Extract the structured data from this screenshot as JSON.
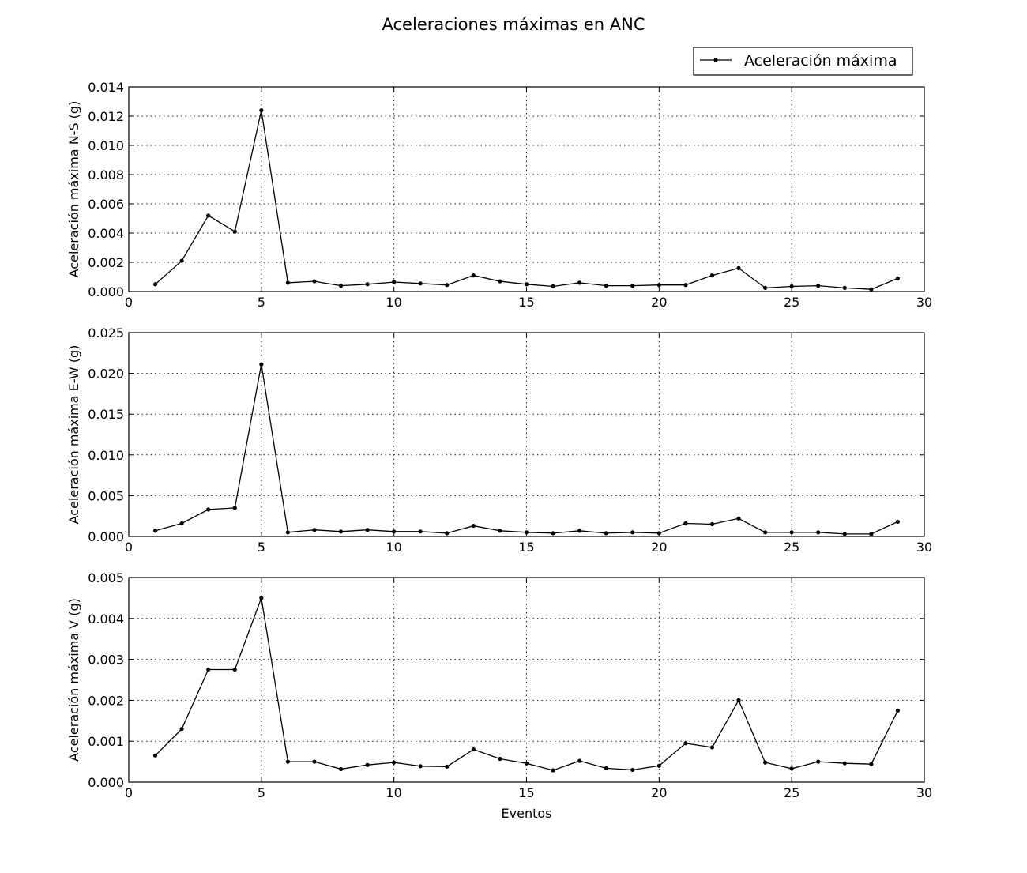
{
  "title": "Aceleraciones máximas en ANC",
  "legend": {
    "label": "Aceleración máxima",
    "placement": "top-right"
  },
  "colors": {
    "line": "#000000",
    "background": "#ffffff"
  },
  "chart_data": [
    {
      "type": "line",
      "ylabel": "Aceleración máxima N-S (g)",
      "xlabel": "",
      "xlim": [
        0,
        30
      ],
      "ylim": [
        0,
        0.014
      ],
      "xticks": [
        0,
        5,
        10,
        15,
        20,
        25,
        30
      ],
      "xtick_labels": [
        "0",
        "5",
        "10",
        "15",
        "20",
        "25",
        "30"
      ],
      "yticks": [
        0,
        0.002,
        0.004,
        0.006,
        0.008,
        0.01,
        0.012,
        0.014
      ],
      "ytick_labels": [
        "0.000",
        "0.002",
        "0.004",
        "0.006",
        "0.008",
        "0.010",
        "0.012",
        "0.014"
      ],
      "grid": true,
      "series": [
        {
          "name": "Aceleración máxima",
          "x": [
            1,
            2,
            3,
            4,
            5,
            6,
            7,
            8,
            9,
            10,
            11,
            12,
            13,
            14,
            15,
            16,
            17,
            18,
            19,
            20,
            21,
            22,
            23,
            24,
            25,
            26,
            27,
            28,
            29
          ],
          "values": [
            0.0005,
            0.0021,
            0.0052,
            0.0041,
            0.0124,
            0.0006,
            0.0007,
            0.0004,
            0.0005,
            0.00065,
            0.00055,
            0.00045,
            0.0011,
            0.0007,
            0.0005,
            0.00035,
            0.0006,
            0.0004,
            0.0004,
            0.00045,
            0.00045,
            0.0011,
            0.0016,
            0.00025,
            0.00035,
            0.0004,
            0.00025,
            0.00015,
            0.0009
          ]
        }
      ]
    },
    {
      "type": "line",
      "ylabel": "Aceleración máxima E-W (g)",
      "xlabel": "",
      "xlim": [
        0,
        30
      ],
      "ylim": [
        0,
        0.025
      ],
      "xticks": [
        0,
        5,
        10,
        15,
        20,
        25,
        30
      ],
      "xtick_labels": [
        "0",
        "5",
        "10",
        "15",
        "20",
        "25",
        "30"
      ],
      "yticks": [
        0,
        0.005,
        0.01,
        0.015,
        0.02,
        0.025
      ],
      "ytick_labels": [
        "0.000",
        "0.005",
        "0.010",
        "0.015",
        "0.020",
        "0.025"
      ],
      "grid": true,
      "series": [
        {
          "name": "Aceleración máxima",
          "x": [
            1,
            2,
            3,
            4,
            5,
            6,
            7,
            8,
            9,
            10,
            11,
            12,
            13,
            14,
            15,
            16,
            17,
            18,
            19,
            20,
            21,
            22,
            23,
            24,
            25,
            26,
            27,
            28,
            29
          ],
          "values": [
            0.0007,
            0.0016,
            0.0033,
            0.0035,
            0.0211,
            0.0005,
            0.0008,
            0.0006,
            0.0008,
            0.0006,
            0.0006,
            0.0004,
            0.0013,
            0.0007,
            0.0005,
            0.0004,
            0.0007,
            0.0004,
            0.0005,
            0.0004,
            0.0016,
            0.0015,
            0.0022,
            0.0005,
            0.0005,
            0.0005,
            0.0003,
            0.0003,
            0.0018
          ]
        }
      ]
    },
    {
      "type": "line",
      "ylabel": "Aceleración máxima V (g)",
      "xlabel": "Eventos",
      "xlim": [
        0,
        30
      ],
      "ylim": [
        0,
        0.005
      ],
      "xticks": [
        0,
        5,
        10,
        15,
        20,
        25,
        30
      ],
      "xtick_labels": [
        "0",
        "5",
        "10",
        "15",
        "20",
        "25",
        "30"
      ],
      "yticks": [
        0,
        0.001,
        0.002,
        0.003,
        0.004,
        0.005
      ],
      "ytick_labels": [
        "0.000",
        "0.001",
        "0.002",
        "0.003",
        "0.004",
        "0.005"
      ],
      "grid": true,
      "series": [
        {
          "name": "Aceleración máxima",
          "x": [
            1,
            2,
            3,
            4,
            5,
            6,
            7,
            8,
            9,
            10,
            11,
            12,
            13,
            14,
            15,
            16,
            17,
            18,
            19,
            20,
            21,
            22,
            23,
            24,
            25,
            26,
            27,
            28,
            29
          ],
          "values": [
            0.00065,
            0.0013,
            0.00275,
            0.00275,
            0.0045,
            0.0005,
            0.0005,
            0.00032,
            0.00042,
            0.00048,
            0.00039,
            0.00038,
            0.0008,
            0.00057,
            0.00046,
            0.00029,
            0.00052,
            0.00034,
            0.0003,
            0.0004,
            0.00095,
            0.00085,
            0.002,
            0.00048,
            0.00033,
            0.0005,
            0.00046,
            0.00044,
            0.00175
          ]
        }
      ]
    }
  ]
}
